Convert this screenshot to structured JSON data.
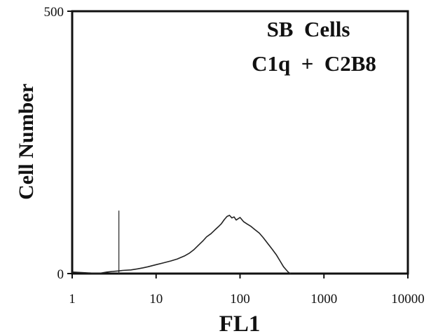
{
  "chart_data": {
    "type": "histogram",
    "title": "",
    "annotations": [
      "SB  Cells",
      "C1q  +  C2B8"
    ],
    "xlabel": "FL1",
    "ylabel": "Cell Number",
    "x_scale": "log",
    "xlim": [
      1,
      10000
    ],
    "ylim": [
      0,
      500
    ],
    "x_ticks": [
      1,
      10,
      100,
      1000,
      10000
    ],
    "x_tick_labels": [
      "1",
      "10",
      "100",
      "1000",
      "10000"
    ],
    "y_ticks": [
      0,
      500
    ],
    "y_tick_labels": [
      "0",
      "500"
    ],
    "marker_line": {
      "x": 3.6,
      "y_top": 120
    },
    "series": [
      {
        "x": [
          1.0,
          1.3,
          1.7,
          2.2,
          2.6,
          3.0,
          3.5,
          4.0,
          5.0,
          6.0,
          7.0,
          8.0,
          10.0,
          12.0,
          15.0,
          18.0,
          22.0,
          25.0,
          28.0,
          32.0,
          36.0,
          40.0,
          45.0,
          50.0,
          55.0,
          60.0,
          65.0,
          70.0,
          75.0,
          80.0,
          85.0,
          90.0,
          100.0,
          110.0,
          120.0,
          135.0,
          150.0,
          170.0,
          190.0,
          210.0,
          240.0,
          270.0,
          300.0,
          330.0,
          360.0,
          380.0,
          400.0
        ],
        "values": [
          3,
          2,
          1,
          1,
          3,
          4,
          5,
          6,
          7,
          9,
          11,
          13,
          17,
          20,
          24,
          28,
          34,
          39,
          45,
          54,
          62,
          70,
          76,
          83,
          89,
          95,
          103,
          109,
          111,
          106,
          108,
          102,
          107,
          99,
          95,
          90,
          84,
          77,
          68,
          59,
          47,
          36,
          24,
          13,
          6,
          2,
          0
        ]
      }
    ]
  }
}
